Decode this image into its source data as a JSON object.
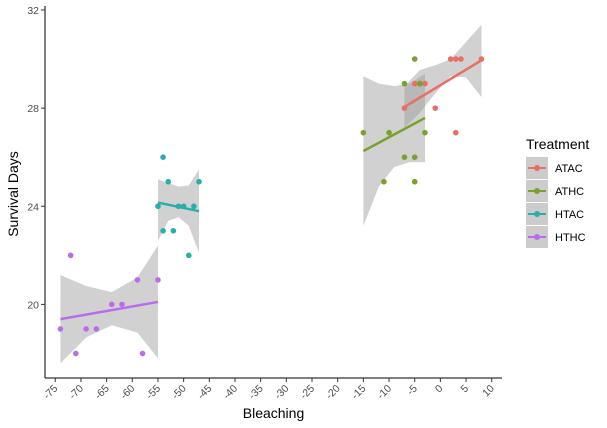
{
  "chart_data": {
    "type": "scatter",
    "title": "",
    "xlabel": "Bleaching",
    "ylabel": "Survival Days",
    "xlim": [
      -77,
      12
    ],
    "ylim": [
      17,
      32
    ],
    "x_ticks": [
      -75,
      -70,
      -65,
      -60,
      -55,
      -50,
      -45,
      -40,
      -35,
      -30,
      -25,
      -20,
      -15,
      -10,
      -5,
      0,
      5,
      10
    ],
    "y_ticks": [
      20,
      24,
      28,
      32
    ],
    "grid": false,
    "legend": {
      "title": "Treatment",
      "position": "right"
    },
    "series": [
      {
        "name": "ATAC",
        "color": "#E76F63",
        "points": [
          [
            -7,
            28
          ],
          [
            -5,
            29
          ],
          [
            -4,
            29
          ],
          [
            -3,
            29
          ],
          [
            -1,
            28
          ],
          [
            2,
            30
          ],
          [
            3,
            30
          ],
          [
            3,
            27
          ],
          [
            4,
            30
          ],
          [
            8,
            30
          ]
        ],
        "fit": {
          "x": [
            -7,
            8
          ],
          "y": [
            28.05,
            29.95
          ]
        },
        "ci_upper": [
          [
            -7,
            28.9
          ],
          [
            -4,
            29.55
          ],
          [
            -1,
            29.75
          ],
          [
            2,
            30.0
          ],
          [
            5,
            30.7
          ],
          [
            8,
            31.4
          ]
        ],
        "ci_lower": [
          [
            -7,
            27.2
          ],
          [
            -4,
            27.8
          ],
          [
            -1,
            28.6
          ],
          [
            2,
            29.3
          ],
          [
            5,
            29.25
          ],
          [
            8,
            28.45
          ]
        ]
      },
      {
        "name": "ATHC",
        "color": "#7AA12B",
        "points": [
          [
            -15,
            27
          ],
          [
            -11,
            25
          ],
          [
            -10,
            27
          ],
          [
            -7,
            26
          ],
          [
            -7,
            29
          ],
          [
            -5,
            30
          ],
          [
            -5,
            26
          ],
          [
            -5,
            25
          ],
          [
            -4,
            29
          ],
          [
            -3,
            27
          ]
        ],
        "fit": {
          "x": [
            -15,
            -3
          ],
          "y": [
            26.25,
            27.6
          ]
        },
        "ci_upper": [
          [
            -15,
            29.3
          ],
          [
            -12,
            29.0
          ],
          [
            -9,
            28.9
          ],
          [
            -6,
            29.0
          ],
          [
            -3,
            29.4
          ]
        ],
        "ci_lower": [
          [
            -15,
            23.2
          ],
          [
            -12,
            24.8
          ],
          [
            -9,
            25.6
          ],
          [
            -6,
            25.8
          ],
          [
            -3,
            25.8
          ]
        ]
      },
      {
        "name": "HTAC",
        "color": "#27AFA8",
        "points": [
          [
            -55,
            24
          ],
          [
            -54,
            26
          ],
          [
            -54,
            23
          ],
          [
            -53,
            25
          ],
          [
            -52,
            23
          ],
          [
            -51,
            24
          ],
          [
            -50,
            24
          ],
          [
            -49,
            22
          ],
          [
            -48,
            24
          ],
          [
            -47,
            25
          ]
        ],
        "fit": {
          "x": [
            -55,
            -47
          ],
          "y": [
            24.15,
            23.8
          ]
        },
        "ci_upper": [
          [
            -55,
            25.1
          ],
          [
            -53,
            24.95
          ],
          [
            -51,
            24.8
          ],
          [
            -49,
            24.85
          ],
          [
            -47,
            25.5
          ]
        ],
        "ci_lower": [
          [
            -55,
            22.6
          ],
          [
            -53,
            23.4
          ],
          [
            -51,
            23.55
          ],
          [
            -49,
            23.2
          ],
          [
            -47,
            22.1
          ]
        ]
      },
      {
        "name": "HTHC",
        "color": "#B86DEB",
        "points": [
          [
            -74,
            19
          ],
          [
            -72,
            22
          ],
          [
            -71,
            18
          ],
          [
            -69,
            19
          ],
          [
            -67,
            19
          ],
          [
            -64,
            20
          ],
          [
            -62,
            20
          ],
          [
            -59,
            21
          ],
          [
            -58,
            18
          ],
          [
            -55,
            21
          ]
        ],
        "fit": {
          "x": [
            -74,
            -55
          ],
          "y": [
            19.4,
            20.1
          ]
        },
        "ci_upper": [
          [
            -74,
            21.2
          ],
          [
            -69,
            20.75
          ],
          [
            -64,
            20.5
          ],
          [
            -59,
            21.1
          ],
          [
            -55,
            22.4
          ]
        ],
        "ci_lower": [
          [
            -74,
            17.6
          ],
          [
            -69,
            18.65
          ],
          [
            -64,
            19.15
          ],
          [
            -59,
            18.85
          ],
          [
            -55,
            17.8
          ]
        ]
      }
    ]
  }
}
